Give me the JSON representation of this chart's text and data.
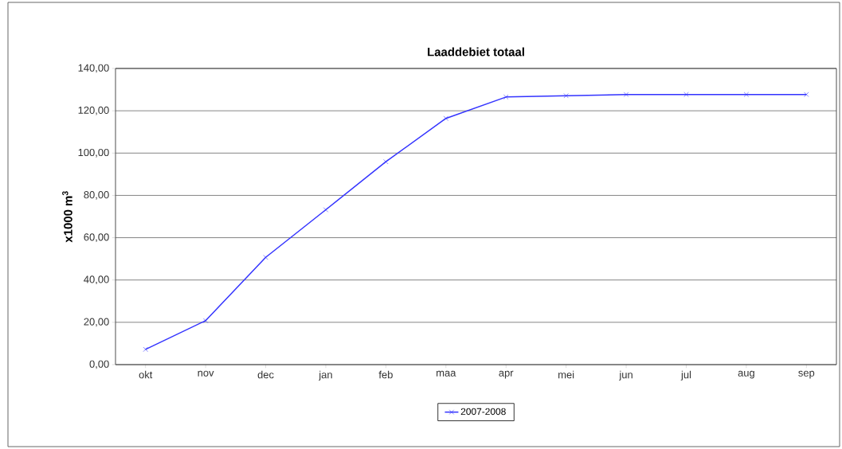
{
  "chart_data": {
    "type": "line",
    "title": "Laaddebiet totaal",
    "ylabel": "x1000 m$^{3}$",
    "categories": [
      "okt",
      "nov",
      "dec",
      "jan",
      "feb",
      "maa",
      "apr",
      "mei",
      "jun",
      "jul",
      "aug",
      "sep"
    ],
    "series": [
      {
        "name": "2007-2008",
        "color": "#3333ff",
        "values": [
          7.2,
          20.8,
          50.7,
          73.2,
          95.9,
          116.4,
          126.5,
          127.1,
          127.7,
          127.7,
          127.7,
          127.7
        ]
      }
    ],
    "ylim": [
      0,
      140
    ],
    "yticks": [
      {
        "value": 0,
        "label": "0,00"
      },
      {
        "value": 20,
        "label": "20,00"
      },
      {
        "value": 40,
        "label": "40,00"
      },
      {
        "value": 60,
        "label": "60,00"
      },
      {
        "value": 80,
        "label": "80,00"
      },
      {
        "value": 100,
        "label": "100,00"
      },
      {
        "value": 120,
        "label": "120,00"
      },
      {
        "value": 140,
        "label": "140,00"
      }
    ],
    "grid": "y",
    "legend": "bottom",
    "marker": "cross",
    "line_style": "solid"
  }
}
